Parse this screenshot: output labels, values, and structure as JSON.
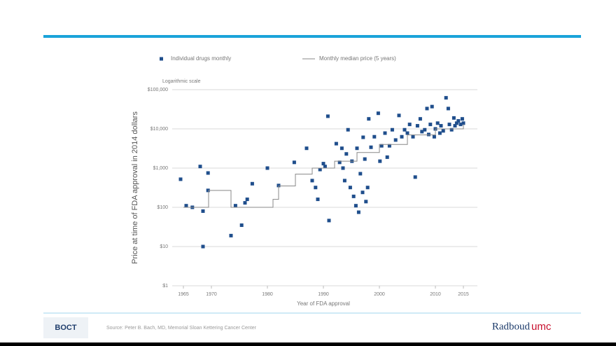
{
  "header": {
    "logo": "BOCT",
    "source": "Source: Peter B. Bach, MD, Memorial Sloan Kettering Cancer Center",
    "brand": "Radboud",
    "brand_suffix": "umc"
  },
  "chart_data": {
    "type": "scatter",
    "subtitle": "Logarithmic scale",
    "y_label": "Price at time of FDA approval in 2014 dollars",
    "x_label": "Year of FDA approval",
    "log_y": true,
    "grid": true,
    "legend": "top",
    "xlim": [
      1964,
      2016
    ],
    "xticks": [
      1965,
      1970,
      1980,
      1990,
      2000,
      2010,
      2015
    ],
    "ylim": [
      1,
      100000
    ],
    "yticks": [
      {
        "value": 1,
        "label": "$1"
      },
      {
        "value": 10,
        "label": "$10"
      },
      {
        "value": 100,
        "label": "$100"
      },
      {
        "value": 1000,
        "label": "$1,000"
      },
      {
        "value": 10000,
        "label": "$10,000"
      },
      {
        "value": 100000,
        "label": "$100,000"
      }
    ],
    "series": [
      {
        "name": "Individual drugs monthly",
        "kind": "points",
        "color": "#1f4e8c",
        "x": [
          1964.5,
          1965.5,
          1966.6,
          1968,
          1968.5,
          1969.4,
          1969.4,
          1968.5,
          1973.5,
          1974.3,
          1975.4,
          1976,
          1976.4,
          1977.3,
          1980,
          1982,
          1984.8,
          1987,
          1988,
          1988.6,
          1989,
          1989.4,
          1990,
          1990.3,
          1990.8,
          1991,
          1992.3,
          1992.9,
          1993.3,
          1993.5,
          1993.8,
          1994.1,
          1994.4,
          1994.8,
          1995.1,
          1995.4,
          1995.8,
          1996,
          1996.3,
          1996.6,
          1997,
          1997.1,
          1997.4,
          1997.6,
          1997.9,
          1998.1,
          1998.5,
          1999.1,
          1999.8,
          2000.1,
          2000.4,
          2001,
          2001.4,
          2001.8,
          2002.3,
          2002.9,
          2003.5,
          2004,
          2004.5,
          2005,
          2005.4,
          2006,
          2006.4,
          2006.8,
          2007.3,
          2007.6,
          2008.1,
          2008.5,
          2008.8,
          2009.1,
          2009.4,
          2009.8,
          2010,
          2010.4,
          2010.8,
          2011,
          2011.4,
          2011.9,
          2012.3,
          2012.5,
          2012.9,
          2013.3,
          2013.5,
          2013.8,
          2014.1,
          2014.5,
          2014.8,
          2015
        ],
        "values": [
          520,
          110,
          100,
          1100,
          80,
          750,
          270,
          10,
          19,
          110,
          35,
          130,
          160,
          400,
          1000,
          360,
          1400,
          3200,
          480,
          320,
          160,
          920,
          1300,
          1100,
          21000,
          46,
          4200,
          1400,
          3200,
          1000,
          480,
          2300,
          9500,
          320,
          1500,
          190,
          110,
          3200,
          75,
          720,
          240,
          6100,
          1700,
          140,
          320,
          18000,
          3400,
          6300,
          25000,
          1500,
          3700,
          7800,
          1900,
          3700,
          9500,
          5200,
          22000,
          6300,
          9500,
          7800,
          13000,
          6300,
          590,
          12000,
          18000,
          8500,
          9500,
          33000,
          7200,
          13000,
          37000,
          6300,
          10000,
          14000,
          7800,
          12000,
          8900,
          62000,
          33000,
          13000,
          9500,
          19000,
          12000,
          14000,
          16000,
          13000,
          18000,
          14000
        ]
      },
      {
        "name": "Monthly median price (5 years)",
        "kind": "step",
        "color": "#888888",
        "x": [
          1965,
          1969.5,
          1973.5,
          1981,
          1982,
          1985,
          1988,
          1992,
          1996,
          2000,
          2005,
          2010,
          2015
        ],
        "values": [
          100,
          270,
          100,
          160,
          350,
          700,
          1000,
          1500,
          2500,
          4000,
          7000,
          10000,
          13000
        ]
      }
    ]
  }
}
